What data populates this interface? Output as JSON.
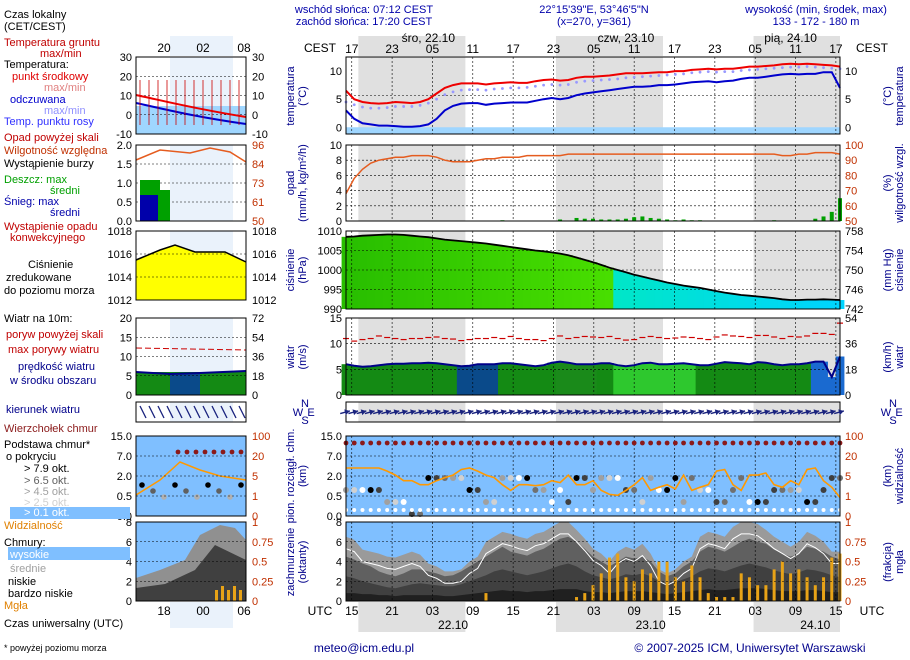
{
  "header": {
    "sunrise": "wschód słońca: 07:12 CEST",
    "sunset": "zachód słońca: 17:20 CEST",
    "coords": "22°15'39\"E, 53°46'5\"N",
    "grid": "(x=270, y=361)",
    "elev_title": "wysokość (min, środek, max)",
    "elev_values": "133 - 172 - 180 m"
  },
  "time_axis": {
    "tz_top": "CEST",
    "tz_bottom": "UTC",
    "top_hours": [
      "17",
      "23",
      "05",
      "11",
      "17",
      "23",
      "05",
      "11",
      "17",
      "23",
      "05",
      "11",
      "17"
    ],
    "bottom_hours": [
      "15",
      "21",
      "03",
      "09",
      "15",
      "21",
      "03",
      "09",
      "15",
      "21",
      "03",
      "09",
      "15"
    ],
    "day_labels_top": [
      "śro, 22.10",
      "czw, 23.10",
      "pią, 24.10"
    ],
    "day_labels_bottom": [
      "22.10",
      "23.10",
      "24.10"
    ]
  },
  "left_panel": {
    "title_local": "Czas lokalny",
    "title_local_tz": "(CET/CEST)",
    "top_hours": [
      "20",
      "02",
      "08"
    ],
    "bottom_hours": [
      "18",
      "00",
      "06"
    ],
    "title_utc": "Czas uniwersalny (UTC)",
    "footnote": "* powyżej poziomu morza",
    "temp_legend": [
      "Temperatura gruntu",
      "max/min",
      "Temperatura:",
      "punkt środkowy",
      "max/min",
      "odczuwana",
      "max/min",
      "Temp. punktu rosy"
    ],
    "precip_legend": [
      "Opad powyżej skali",
      "Wilgotność względna",
      "Wystąpienie burzy",
      "Deszcz: max",
      "średni",
      "Śnieg: max",
      "średni",
      "Wystąpienie opadu",
      "konwekcyjnego"
    ],
    "pressure_legend": [
      "Ciśnienie",
      "zredukowane",
      "do poziomu morza"
    ],
    "wind_legend": [
      "Wiatr na 10m:",
      "poryw powyżej skali",
      "max porywy wiatru",
      "prędkość wiatru",
      "w środku obszaru"
    ],
    "winddir_legend": "kierunek wiatru",
    "cloudbase_legend": [
      "Wierzchołek chmur",
      "Podstawa chmur*",
      "o pokryciu",
      "> 7.9 okt.",
      "> 6.5 okt.",
      "> 4.5 okt.",
      "> 2.5 okt.",
      "> 0.1 okt.",
      "Widzialność"
    ],
    "clouds_legend": [
      "Chmury:",
      "wysokie",
      "średnie",
      "niskie",
      "bardzo niskie",
      "Mgła"
    ],
    "temp_ticks": [
      "30",
      "20",
      "10",
      "0",
      "-10"
    ],
    "precip_ticks_l": [
      "2.0",
      "1.5",
      "1.0",
      "0.5",
      "0.0"
    ],
    "precip_ticks_r": [
      "96",
      "84",
      "73",
      "61",
      "50"
    ],
    "press_ticks": [
      "1018",
      "1016",
      "1014",
      "1012"
    ],
    "wind_ticks_l": [
      "20",
      "15",
      "10",
      "5",
      "0"
    ],
    "wind_ticks_r": [
      "72",
      "54",
      "36",
      "18",
      "0"
    ],
    "cb_ticks_l": [
      "15.0",
      "7.0",
      "2.0",
      "0.5",
      "0.0"
    ],
    "cb_ticks_r": [
      "100",
      "20",
      "5",
      "1",
      "0"
    ],
    "cl_ticks_l": [
      "8",
      "6",
      "4",
      "2",
      "0"
    ],
    "cl_ticks_r": [
      "1",
      "0.75",
      "0.5",
      "0.25",
      "0"
    ]
  },
  "panels": {
    "temperature": {
      "ylabel": "temperatura",
      "unit": "(°C)",
      "ticks": [
        "10",
        "5",
        "0"
      ]
    },
    "precip": {
      "ylabel": "opad",
      "unit": "(mm/h, kg/m²/h)",
      "ticks": [
        "10",
        "8",
        "6",
        "4",
        "2",
        "0"
      ],
      "ylabel_r": "wilgotność wzgl.",
      "unit_r": "(%)",
      "ticks_r": [
        "100",
        "90",
        "80",
        "70",
        "60",
        "50"
      ]
    },
    "pressure": {
      "ylabel": "ciśnienie",
      "unit": "(hPa)",
      "ticks": [
        "1010",
        "1005",
        "1000",
        "995",
        "990"
      ],
      "ylabel_r": "ciśnienie",
      "unit_r": "(mm Hg)",
      "ticks_r": [
        "758",
        "754",
        "750",
        "746",
        "742"
      ]
    },
    "wind": {
      "ylabel": "wiatr",
      "unit": "(m/s)",
      "ticks": [
        "15",
        "10",
        "5",
        "0"
      ],
      "ylabel_r": "wiatr",
      "unit_r": "(km/h)",
      "ticks_r": [
        "54",
        "36",
        "18",
        "0"
      ]
    },
    "winddir": {
      "compass": [
        "N",
        "W",
        "E",
        "S"
      ]
    },
    "cloudbase": {
      "ylabel": "pion. rozciągł. chm.",
      "unit": "(km)",
      "ticks": [
        "15.0",
        "7.0",
        "2.0",
        "0.5",
        "0.0"
      ],
      "ylabel_r": "widzialność",
      "unit_r": "(km)",
      "ticks_r": [
        "100",
        "20",
        "5",
        "1",
        "0"
      ]
    },
    "clouds": {
      "ylabel": "zachmurzenie",
      "unit": "(oktanty)",
      "ticks": [
        "8",
        "6",
        "4",
        "2",
        "0"
      ],
      "ylabel_r": "mgła",
      "unit_r": "(frakcja)",
      "ticks_r": [
        "1",
        "0.75",
        "0.5",
        "0.25",
        "0"
      ]
    }
  },
  "chart_data": {
    "type": "line",
    "x_utc_hours_from_start": "0..60",
    "temperature": {
      "mid": [
        6.5,
        5,
        4.5,
        4.3,
        4.2,
        4.3,
        4.5,
        4.4,
        4.3,
        4.5,
        5,
        6,
        7,
        7.5,
        7.8,
        7.8,
        7.8,
        7.6,
        7.8,
        7.9,
        8,
        7.9,
        7.9,
        8.2,
        8.4,
        8.5,
        8.3,
        8.4,
        8.8,
        9,
        9,
        9.1,
        9.2,
        9.4,
        9.6,
        9.6,
        9.6,
        9.7,
        9.8,
        9.8,
        10,
        10,
        10.2,
        10.3,
        10.4,
        10.3,
        10.4,
        10.4,
        10.6,
        10.8,
        10.8,
        10.9,
        11,
        11.2,
        11.3,
        11.2,
        11.3,
        11.2,
        11.1,
        11,
        10.8
      ],
      "apparent": [
        3,
        1.5,
        0.7,
        0.5,
        0.3,
        0.3,
        0.2,
        0.1,
        0.1,
        0.2,
        0.5,
        1.5,
        3,
        3.8,
        4.2,
        4.3,
        4.3,
        4,
        4.2,
        4.3,
        4.4,
        4.4,
        4.4,
        4.7,
        5,
        5.2,
        5,
        5.2,
        5.7,
        6,
        6.2,
        6.4,
        6.6,
        6.8,
        7,
        7.2,
        7.2,
        7.3,
        7.5,
        7.5,
        7.6,
        7.8,
        8,
        8.1,
        8.2,
        8,
        8.2,
        8.3,
        8.6,
        8.8,
        8.8,
        9,
        9.2,
        9.4,
        9.5,
        9.4,
        9.5,
        9.5,
        9.8,
        9.8,
        7
      ],
      "dewpoint": [
        4.5,
        4,
        3.6,
        3.4,
        3.4,
        3.5,
        3.7,
        3.7,
        3.7,
        3.9,
        4.3,
        5,
        5.8,
        6.3,
        6.6,
        6.7,
        6.7,
        6.6,
        6.8,
        6.9,
        7,
        7,
        7.1,
        7.3,
        7.5,
        7.6,
        7.5,
        7.6,
        8,
        8.2,
        8.3,
        8.4,
        8.5,
        8.6,
        8.8,
        8.9,
        9,
        9.1,
        9.2,
        9.3,
        9.4,
        9.5,
        9.7,
        9.8,
        9.9,
        9.8,
        9.9,
        9.9,
        10.1,
        10.2,
        10.3,
        10.4,
        10.5,
        10.6,
        10.7,
        10.7,
        10.8,
        10.7,
        10.6,
        10.5,
        10.4
      ]
    },
    "humidity": [
      68,
      78,
      84,
      88,
      90,
      91,
      92,
      92,
      93,
      93,
      93,
      92,
      90,
      89,
      89,
      89,
      90,
      91,
      91,
      92,
      92,
      92,
      93,
      93,
      93,
      93,
      93,
      94,
      94,
      94,
      94,
      94,
      94,
      94,
      94,
      94,
      94,
      94,
      94,
      94,
      94,
      94,
      94,
      94,
      94,
      94,
      94,
      94,
      94,
      94,
      94,
      94,
      94,
      93,
      93,
      94,
      94,
      95,
      95,
      95,
      94
    ],
    "precip": [
      0,
      0,
      0,
      0,
      0,
      0,
      0,
      0,
      0,
      0,
      0,
      0,
      0,
      0,
      0,
      0,
      0,
      0,
      0,
      0.1,
      0,
      0,
      0,
      0,
      0,
      0,
      0.2,
      0,
      0.4,
      0.3,
      0.3,
      0.2,
      0.2,
      0.2,
      0.3,
      0.5,
      0.6,
      0.4,
      0.3,
      0.2,
      0.1,
      0.2,
      0.1,
      0.1,
      0,
      0,
      0,
      0,
      0,
      0,
      0,
      0,
      0.1,
      0,
      0,
      0,
      0,
      0.3,
      0.6,
      1.2,
      3
    ],
    "pressure": [
      1008.5,
      1008.6,
      1008.8,
      1008.9,
      1009,
      1009.1,
      1009.1,
      1009,
      1008.8,
      1008.6,
      1008.4,
      1008.1,
      1007.8,
      1007.6,
      1007.4,
      1007.2,
      1007,
      1006.8,
      1006.5,
      1006.2,
      1005.9,
      1005.6,
      1005.3,
      1005,
      1004.8,
      1004.5,
      1004.2,
      1003.8,
      1003.2,
      1002.6,
      1002,
      1001.3,
      1000.6,
      1000,
      999.4,
      998.8,
      998.3,
      997.8,
      997.3,
      996.8,
      996.4,
      996,
      995.7,
      995.4,
      995,
      994.6,
      994.2,
      993.9,
      993.6,
      993.4,
      993.2,
      993,
      992.8,
      992.5,
      992.3,
      992.3,
      992.4,
      992.4,
      992.5,
      992.4,
      992.3
    ],
    "wind_speed": [
      6,
      5.7,
      5.5,
      5.6,
      5.8,
      6,
      6.1,
      6.1,
      6.2,
      6.2,
      6.3,
      6.2,
      6,
      5.8,
      5.6,
      5.7,
      6,
      6,
      6,
      6.2,
      6.2,
      6,
      5.8,
      5.6,
      5.8,
      6.3,
      6.5,
      6.3,
      6,
      6,
      6,
      6.2,
      6.2,
      5.8,
      5.6,
      5.8,
      6.2,
      6.3,
      6,
      6,
      6.1,
      6.2,
      6,
      5.8,
      5.8,
      6.1,
      6.4,
      6.3,
      6.2,
      6,
      6.4,
      6.3,
      6,
      5.8,
      6,
      6,
      6.2,
      6.5,
      6.5,
      3.5,
      7.5
    ],
    "wind_gust": [
      11,
      10.5,
      10.8,
      11,
      11.5,
      11.2,
      11,
      10.8,
      11,
      11,
      11.2,
      11.3,
      11,
      10.9,
      10.6,
      10.8,
      11,
      11,
      11.2,
      11,
      11.4,
      11,
      10.8,
      10.8,
      10.6,
      11,
      11.5,
      11,
      11.2,
      11.4,
      11.3,
      11.2,
      11.4,
      11,
      10.7,
      10.8,
      11.2,
      11.4,
      11.2,
      11,
      11.1,
      11.3,
      11.2,
      11,
      10.8,
      11.3,
      11.7,
      11.5,
      11.4,
      11.2,
      11.6,
      11.6,
      11.3,
      11,
      11.4,
      11.3,
      11.5,
      12,
      12,
      11.8,
      14
    ],
    "visibility_km": [
      10,
      10,
      10,
      10,
      10,
      8,
      6,
      4,
      4,
      3,
      3,
      4,
      5,
      6,
      9,
      10,
      8,
      6,
      5,
      3,
      2,
      3,
      3,
      2.8,
      3,
      4,
      3.5,
      6,
      3,
      3,
      4,
      2,
      1.5,
      1.4,
      2,
      3,
      5,
      2,
      2.5,
      3,
      2.2,
      6,
      2,
      2.5,
      3,
      8,
      9,
      3,
      2,
      6,
      6,
      7,
      3,
      2.5,
      4,
      3,
      9,
      10,
      4,
      2.5,
      1.2
    ],
    "cloud_top_km": 12,
    "cloud_cover_high": [
      6.5,
      6.2,
      5.2,
      5,
      4.8,
      4.5,
      4.4,
      4.7,
      5,
      4.7,
      3.8,
      3.5,
      3,
      3,
      3.2,
      4,
      4.5,
      6,
      6.5,
      7,
      6.8,
      6.5,
      6.3,
      6.8,
      7,
      7.5,
      8,
      8,
      7.2,
      6.3,
      5.3,
      4.8,
      4,
      5,
      5.5,
      5.2,
      5.8,
      4.8,
      3.2,
      2.8,
      3.2,
      4,
      4.5,
      6.5,
      7,
      6.8,
      6.5,
      7.5,
      8,
      8,
      7.8,
      7.2,
      6.5,
      6,
      5.5,
      6,
      7,
      6.6,
      6,
      5,
      5
    ],
    "cloud_cover_mid": [
      4.5,
      4.2,
      3.8,
      3.5,
      3,
      2.7,
      2.5,
      2.8,
      3.2,
      3.2,
      3,
      2.8,
      2.5,
      2.6,
      3,
      3.5,
      4,
      4.5,
      5,
      5.5,
      5,
      4.8,
      4.6,
      5,
      5.3,
      5.8,
      6.3,
      6.5,
      6,
      5.3,
      4.5,
      4,
      3.5,
      4,
      4.5,
      4.3,
      4.5,
      4,
      3,
      2.5,
      2.8,
      3.5,
      4,
      5,
      5.5,
      5.3,
      5,
      5.5,
      6,
      6.3,
      6,
      5.8,
      5.2,
      4.8,
      4.5,
      4.8,
      5.5,
      5.3,
      5,
      4.5,
      4.2
    ],
    "cloud_cover_low": [
      2.5,
      2.3,
      2,
      1.8,
      1.6,
      1.4,
      1.3,
      1.5,
      1.7,
      1.8,
      1.7,
      1.6,
      1.5,
      1.5,
      1.7,
      2,
      2.3,
      2.6,
      3,
      3.2,
      3,
      2.8,
      2.6,
      2.8,
      3,
      3.3,
      3.6,
      3.8,
      3.5,
      3,
      2.6,
      2.4,
      2.2,
      2.4,
      2.7,
      2.6,
      2.8,
      2.5,
      2,
      1.8,
      1.9,
      2.2,
      2.5,
      3,
      3.3,
      3.2,
      3,
      3.3,
      3.6,
      3.8,
      3.6,
      3.4,
      3.1,
      2.9,
      2.7,
      2.9,
      3.2,
      3.1,
      2.9,
      2.6,
      2.4
    ],
    "cloud_cover_verylow": [
      0.8,
      0.8,
      0.7,
      0.7,
      0.6,
      0.6,
      0.5,
      0.6,
      0.6,
      0.6,
      0.6,
      0.6,
      0.5,
      0.5,
      0.6,
      0.7,
      0.8,
      0.9,
      1,
      1.1,
      1,
      1,
      0.9,
      1,
      1,
      1.1,
      1.2,
      1.2,
      1.2,
      1,
      0.9,
      0.9,
      0.8,
      0.9,
      1,
      1,
      1,
      0.9,
      0.8,
      0.7,
      0.8,
      0.9,
      1,
      1.1,
      1.2,
      1.1,
      1.1,
      1.2,
      1.3,
      1.3,
      1.3,
      1.2,
      1.1,
      1,
      1,
      1,
      1.1,
      1.1,
      1,
      0.9,
      0.9
    ],
    "fog_fraction": [
      0,
      0,
      0,
      0,
      0,
      0,
      0,
      0,
      0,
      0,
      0,
      0,
      0,
      0,
      0,
      0,
      0,
      0.1,
      0,
      0,
      0,
      0,
      0,
      0,
      0,
      0,
      0,
      0,
      0.05,
      0.1,
      0.2,
      0.35,
      0.55,
      0.6,
      0.3,
      0.25,
      0.4,
      0.35,
      0.5,
      0.5,
      0.3,
      0.25,
      0.45,
      0.3,
      0.1,
      0.05,
      0.05,
      0.05,
      0.35,
      0.3,
      0.2,
      0.2,
      0.4,
      0.5,
      0.35,
      0.4,
      0.3,
      0.2,
      0.3,
      0.55,
      0.6
    ],
    "colors": {
      "temp_mid": "#ee0000",
      "temp_apparent": "#0000cc",
      "dewpoint": "#9999ff",
      "humidity": "#e55c1f",
      "precip": "#00a000",
      "pressure_line": "#000000",
      "wind_speed": "#000088",
      "wind_gust": "#cc0000",
      "panel_sky": "#7fbfff",
      "cloud_top": "#8b1a1a",
      "visibility": "#ff9900"
    }
  },
  "footer": {
    "email": "meteo@icm.edu.pl",
    "copyright": "© 2007-2025 ICM, Uniwersytet Warszawski"
  }
}
